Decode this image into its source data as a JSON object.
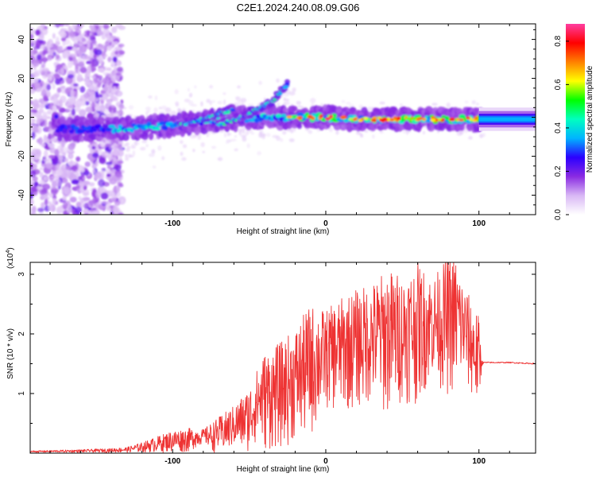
{
  "title": "C2E1.2024.240.08.09.G06",
  "chart_data": [
    {
      "type": "heatmap",
      "panel": "top",
      "xlabel": "Height of straight line (km)",
      "ylabel": "Frequency (Hz)",
      "xlim": [
        -193,
        137
      ],
      "ylim": [
        -50,
        48
      ],
      "xticks": [
        -100,
        0,
        100
      ],
      "xtick_labels": [
        "-100",
        "0",
        "100"
      ],
      "yticks": [
        -40,
        -20,
        0,
        20,
        40
      ],
      "ytick_labels": [
        "-40",
        "-20",
        "0",
        "20",
        "40"
      ],
      "colorbar": {
        "label": "Normalized spectral amplitude",
        "range": [
          0,
          0.88
        ],
        "ticks": [
          0.0,
          0.2,
          0.4,
          0.6,
          0.8
        ],
        "tick_labels": [
          "0.0",
          "0.2",
          "0.4",
          "0.6",
          "0.8"
        ],
        "colormap": [
          "#ffffff",
          "#d9b8f5",
          "#8a2be2",
          "#2b00ff",
          "#00b4ff",
          "#00ffc0",
          "#00ff00",
          "#ffff00",
          "#ff8000",
          "#ff0000",
          "#ff3da0"
        ]
      },
      "features": {
        "noise_band_x": [
          -193,
          -133
        ],
        "main_ridge": [
          [
            -175,
            -6
          ],
          [
            -140,
            -6
          ],
          [
            -120,
            -5
          ],
          [
            -100,
            -4
          ],
          [
            -80,
            -2
          ],
          [
            -60,
            -1
          ],
          [
            -40,
            0
          ],
          [
            -20,
            0
          ],
          [
            0,
            0
          ],
          [
            20,
            -1
          ],
          [
            50,
            -1
          ],
          [
            80,
            -1
          ],
          [
            100,
            -1
          ]
        ],
        "chirp_1": [
          [
            -95,
            -4
          ],
          [
            -80,
            -1
          ],
          [
            -70,
            2
          ],
          [
            -60,
            4
          ]
        ],
        "chirp_2": [
          [
            -70,
            -4
          ],
          [
            -55,
            0
          ],
          [
            -45,
            4
          ],
          [
            -35,
            8
          ],
          [
            -25,
            17
          ]
        ],
        "steady_band_x": [
          100,
          137
        ]
      }
    },
    {
      "type": "line",
      "panel": "bottom",
      "xlabel": "Height of straight line (km)",
      "ylabel": "SNR (10 * v/v)",
      "y_multiplier_label": "(x10",
      "y_multiplier_exp": "4",
      "xlim": [
        -193,
        137
      ],
      "ylim": [
        0,
        3.2
      ],
      "xticks": [
        -100,
        0,
        100
      ],
      "xtick_labels": [
        "-100",
        "0",
        "100"
      ],
      "yticks": [
        1,
        2,
        3
      ],
      "ytick_labels": [
        "1",
        "2",
        "3"
      ],
      "color": "#ee3333",
      "series": [
        {
          "x": [
            -193,
            -160,
            -140,
            -130,
            -120,
            -110,
            -100,
            -90,
            -80,
            -70,
            -60,
            -50,
            -45,
            -40,
            -30,
            -20,
            -10,
            0,
            10,
            20,
            30,
            40,
            50,
            60,
            70,
            80,
            85,
            90,
            100,
            102,
            104,
            110,
            120,
            137
          ],
          "y": [
            0.02,
            0.03,
            0.04,
            0.05,
            0.1,
            0.14,
            0.2,
            0.25,
            0.3,
            0.32,
            0.5,
            0.62,
            0.9,
            1.0,
            1.1,
            1.3,
            1.55,
            1.7,
            1.8,
            1.9,
            2.0,
            2.05,
            2.1,
            2.2,
            2.25,
            2.3,
            2.35,
            2.15,
            1.6,
            1.52,
            1.52,
            1.52,
            1.52,
            1.5
          ],
          "peak": [
            0.04,
            0.06,
            0.08,
            0.1,
            0.18,
            0.28,
            0.38,
            0.42,
            0.4,
            0.6,
            0.8,
            1.1,
            1.4,
            1.7,
            1.85,
            2.1,
            2.5,
            2.4,
            2.6,
            2.75,
            2.85,
            3.1,
            3.0,
            3.2,
            2.95,
            3.3,
            3.3,
            2.85,
            2.3,
            1.55,
            1.55,
            1.55,
            1.55,
            1.5
          ]
        }
      ]
    }
  ]
}
